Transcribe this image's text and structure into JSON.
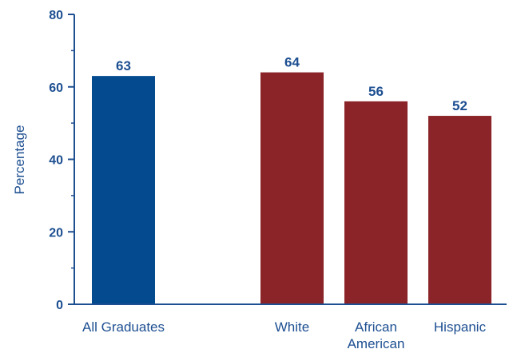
{
  "chart_data": {
    "type": "bar",
    "categories": [
      "All Graduates",
      "White",
      "African American",
      "Hispanic"
    ],
    "category_lines": [
      [
        "All Graduates"
      ],
      [
        "White"
      ],
      [
        "African",
        "American"
      ],
      [
        "Hispanic"
      ]
    ],
    "values": [
      63,
      64,
      56,
      52
    ],
    "value_labels": [
      "63",
      "64",
      "56",
      "52"
    ],
    "ylabel": "Percentage",
    "xlabel": "",
    "ylim": [
      0,
      80
    ],
    "yticks": [
      0,
      20,
      40,
      60,
      80
    ],
    "ytick_labels": [
      "0",
      "20",
      "40",
      "60",
      "80"
    ],
    "minor_tick_step": 10,
    "grid": false,
    "legend": "none",
    "bar_colors": [
      "#034a8e",
      "#8b2428",
      "#8b2428",
      "#8b2428"
    ],
    "axis_color": "#1d4f91",
    "label_color": "#1d4f91"
  }
}
